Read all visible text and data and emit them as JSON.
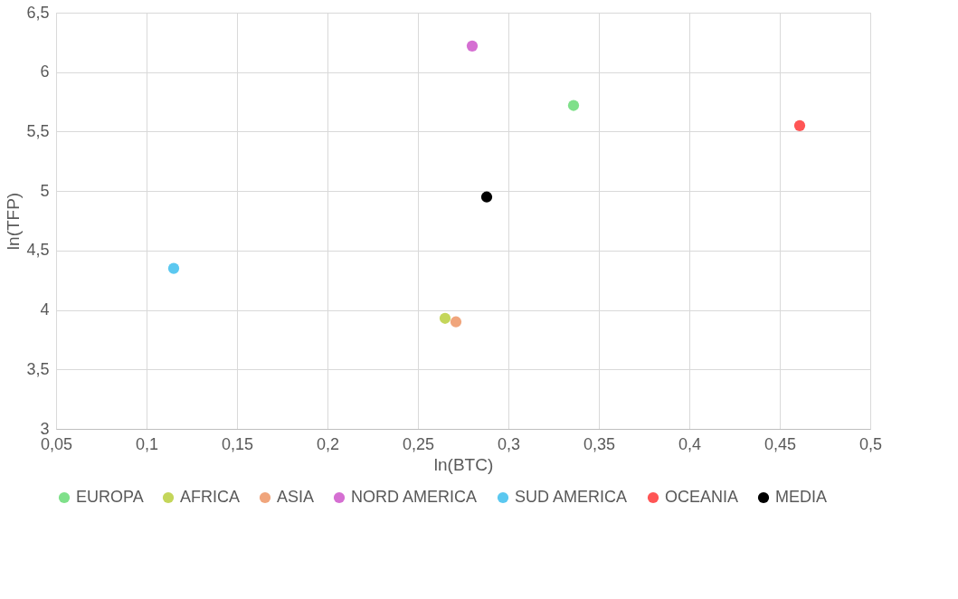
{
  "chart_data": {
    "type": "scatter",
    "xlabel": "ln(BTC)",
    "ylabel": "ln(TFP)",
    "xlim": [
      0.05,
      0.5
    ],
    "xticks": [
      {
        "value": 0.05,
        "label": "0,05"
      },
      {
        "value": 0.1,
        "label": "0,1"
      },
      {
        "value": 0.15,
        "label": "0,15"
      },
      {
        "value": 0.2,
        "label": "0,2"
      },
      {
        "value": 0.25,
        "label": "0,25"
      },
      {
        "value": 0.3,
        "label": "0,3"
      },
      {
        "value": 0.35,
        "label": "0,35"
      },
      {
        "value": 0.4,
        "label": "0,4"
      },
      {
        "value": 0.45,
        "label": "0,45"
      },
      {
        "value": 0.5,
        "label": "0,5"
      }
    ],
    "ylim": [
      3,
      6.5
    ],
    "yticks": [
      3,
      {
        "value": 3.5,
        "label": "3,5"
      },
      4,
      {
        "value": 4.5,
        "label": "4,5"
      },
      5,
      {
        "value": 5.5,
        "label": "5,5"
      },
      6,
      {
        "value": 6.5,
        "label": "6,5"
      }
    ],
    "grid": true,
    "legend": "bottom",
    "marker": "circle",
    "series": [
      {
        "name": "EUROPA",
        "color": "#7fe08a",
        "x": [
          0.336
        ],
        "values": [
          5.72
        ]
      },
      {
        "name": "AFRICA",
        "color": "#c4d65a",
        "x": [
          0.265
        ],
        "values": [
          3.93
        ]
      },
      {
        "name": "ASIA",
        "color": "#f0a57c",
        "x": [
          0.271
        ],
        "values": [
          3.9
        ]
      },
      {
        "name": "NORD AMERICA",
        "color": "#d56fd2",
        "x": [
          0.28
        ],
        "values": [
          6.22
        ]
      },
      {
        "name": "SUD AMERICA",
        "color": "#5bc8f0",
        "x": [
          0.115
        ],
        "values": [
          4.35
        ]
      },
      {
        "name": "OCEANIA",
        "color": "#ff5555",
        "x": [
          0.461
        ],
        "values": [
          5.55
        ]
      },
      {
        "name": "MEDIA",
        "color": "#000000",
        "x": [
          0.288
        ],
        "values": [
          4.95
        ]
      }
    ]
  }
}
